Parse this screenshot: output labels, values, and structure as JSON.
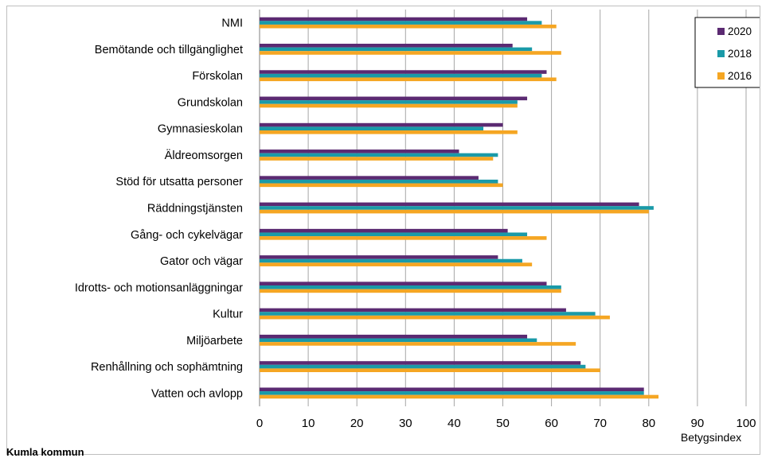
{
  "chart_data": {
    "type": "bar",
    "orientation": "horizontal",
    "categories": [
      "NMI",
      "Bemötande och tillgänglighet",
      "Förskolan",
      "Grundskolan",
      "Gymnasieskolan",
      "Äldreomsorgen",
      "Stöd för utsatta personer",
      "Räddningstjänsten",
      "Gång- och cykelvägar",
      "Gator och vägar",
      "Idrotts- och motionsanläggningar",
      "Kultur",
      "Miljöarbete",
      "Renhållning och sophämtning",
      "Vatten och avlopp"
    ],
    "series": [
      {
        "name": "2020",
        "color": "#5b2a72",
        "values": [
          55,
          52,
          59,
          55,
          50,
          41,
          45,
          78,
          51,
          49,
          59,
          63,
          55,
          66,
          79
        ]
      },
      {
        "name": "2018",
        "color": "#1a9aa8",
        "values": [
          58,
          56,
          58,
          53,
          46,
          49,
          49,
          81,
          55,
          54,
          62,
          69,
          57,
          67,
          79
        ]
      },
      {
        "name": "2016",
        "color": "#f5a623",
        "values": [
          61,
          62,
          61,
          53,
          53,
          48,
          50,
          80,
          59,
          56,
          62,
          72,
          65,
          70,
          82
        ]
      }
    ],
    "xlim": [
      0,
      100
    ],
    "xticks": [
      0,
      10,
      20,
      30,
      40,
      50,
      60,
      70,
      80,
      90,
      100
    ],
    "xlabel": "Betygsindex",
    "vertical_grid": true,
    "legend_position": "top-right"
  },
  "footer": {
    "label": "Kumla kommun"
  }
}
